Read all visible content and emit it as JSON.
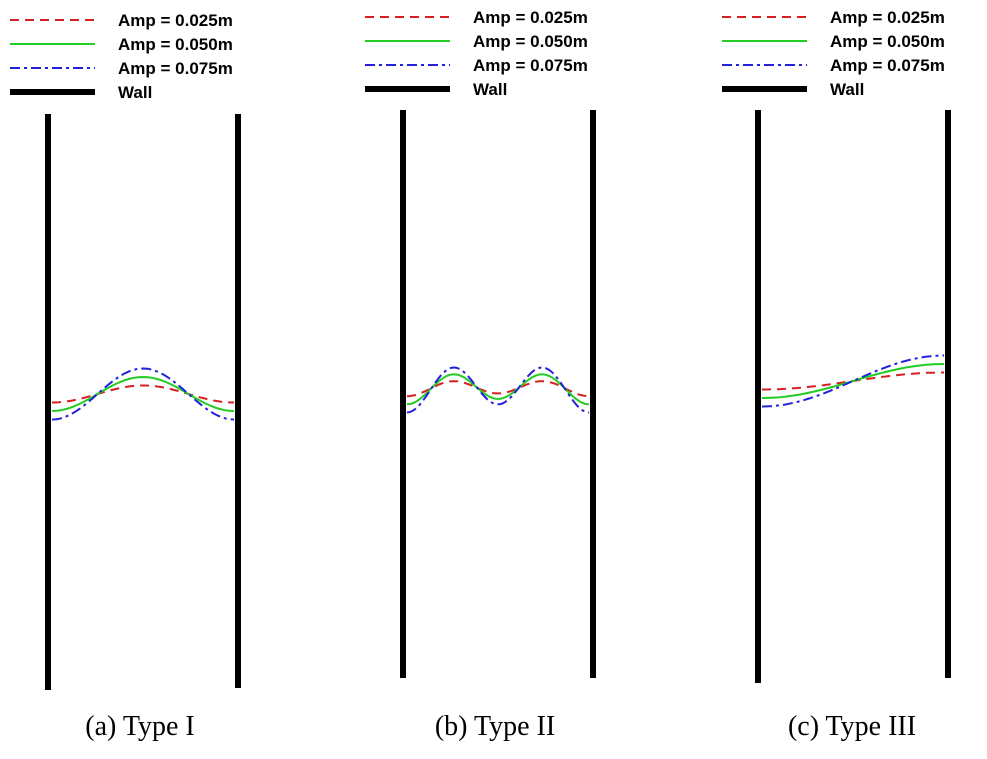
{
  "chart_data": [
    {
      "type": "line",
      "caption": "(a) Type I",
      "legend": [
        "Amp = 0.025m",
        "Amp = 0.050m",
        "Amp = 0.075m",
        "Wall"
      ],
      "series": [
        {
          "name": "Amp = 0.025m",
          "color": "#d62020",
          "dash": "dashed",
          "amplitude": 0.025
        },
        {
          "name": "Amp = 0.050m",
          "color": "#22cc22",
          "dash": "solid",
          "amplitude": 0.05
        },
        {
          "name": "Amp = 0.075m",
          "color": "#2222dd",
          "dash": "dashdot",
          "amplitude": 0.075
        }
      ],
      "mode": "single-hump"
    },
    {
      "type": "line",
      "caption": "(b) Type II",
      "legend": [
        "Amp = 0.025m",
        "Amp = 0.050m",
        "Amp = 0.075m",
        "Wall"
      ],
      "series": [
        {
          "name": "Amp = 0.025m",
          "color": "#d62020",
          "dash": "dashed",
          "amplitude": 0.025
        },
        {
          "name": "Amp = 0.050m",
          "color": "#22cc22",
          "dash": "solid",
          "amplitude": 0.05
        },
        {
          "name": "Amp = 0.075m",
          "color": "#2222dd",
          "dash": "dashdot",
          "amplitude": 0.075
        }
      ],
      "mode": "double-hump"
    },
    {
      "type": "line",
      "caption": "(c) Type III",
      "legend": [
        "Amp = 0.025m",
        "Amp = 0.050m",
        "Amp = 0.075m",
        "Wall"
      ],
      "series": [
        {
          "name": "Amp = 0.025m",
          "color": "#d62020",
          "dash": "dashed",
          "amplitude": 0.025
        },
        {
          "name": "Amp = 0.050m",
          "color": "#22cc22",
          "dash": "solid",
          "amplitude": 0.05
        },
        {
          "name": "Amp = 0.075m",
          "color": "#2222dd",
          "dash": "dashdot",
          "amplitude": 0.075
        }
      ],
      "mode": "tilt"
    }
  ]
}
